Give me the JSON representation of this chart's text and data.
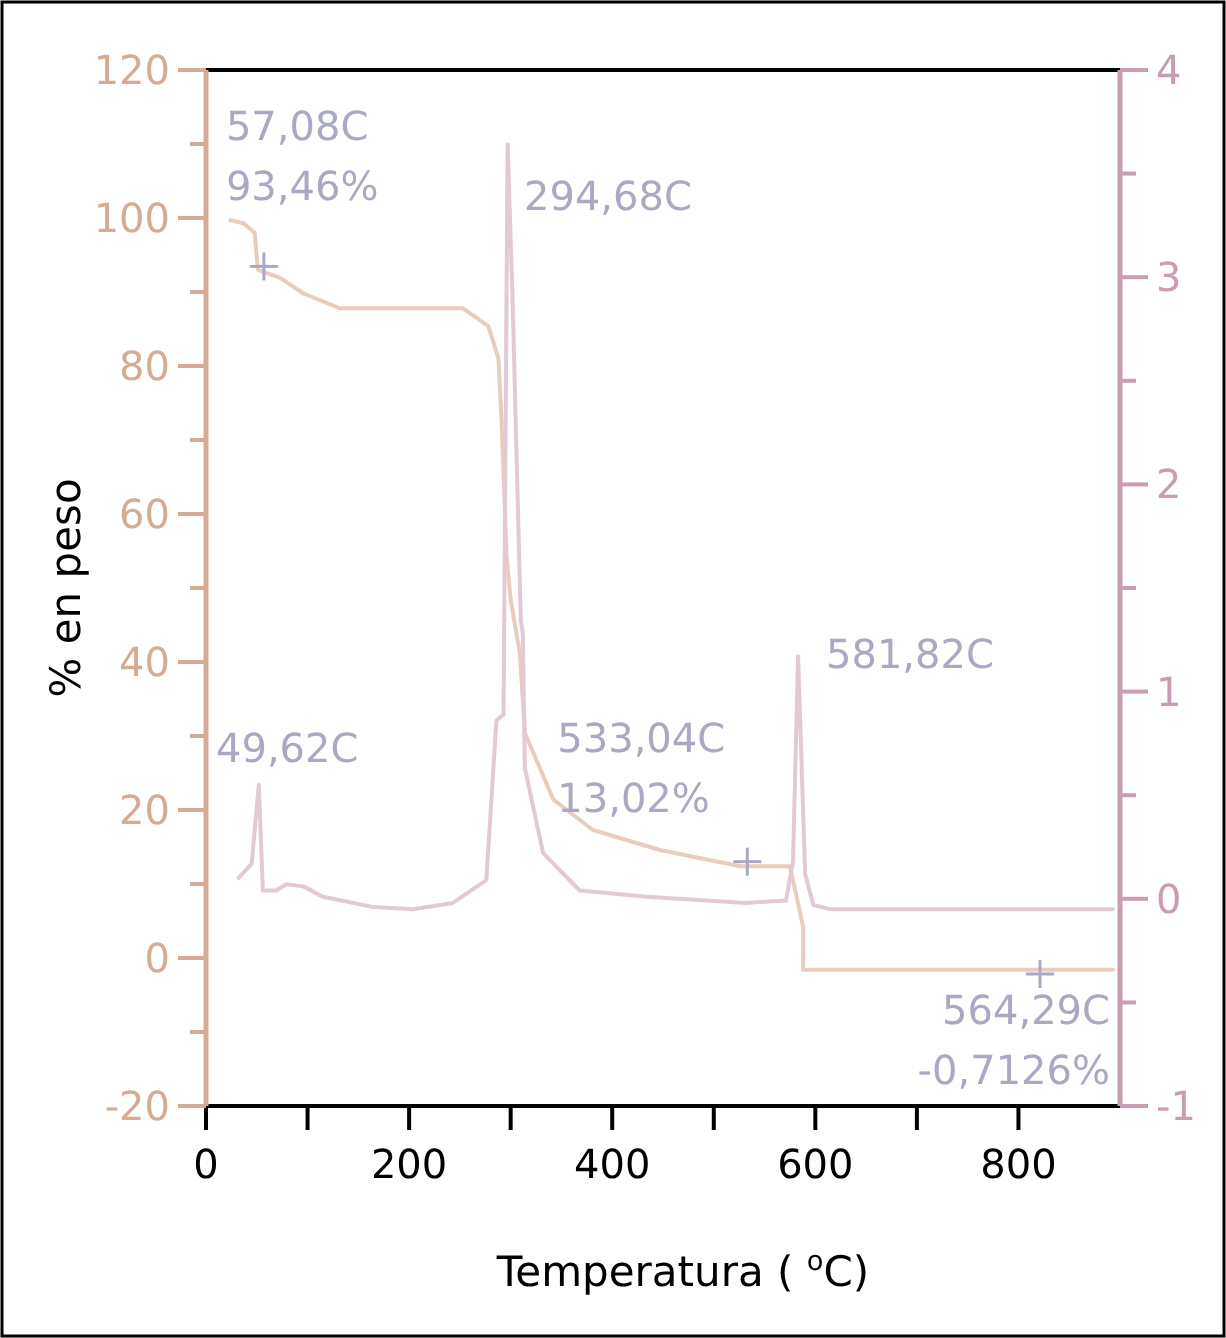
{
  "chart_data": {
    "type": "line",
    "xlabel": "Temperatura ( $^{o}$C)",
    "ylabel": "% en peso",
    "xlim": [
      0,
      900
    ],
    "xticks": [
      0,
      {
        "value": 100,
        "label": null
      },
      200,
      {
        "value": 300,
        "label": null
      },
      400,
      {
        "value": 500,
        "label": null
      },
      600,
      {
        "value": 700,
        "label": null
      },
      800
    ],
    "ylim": [
      -20,
      120
    ],
    "yticks": [
      -20,
      {
        "value": -10,
        "label": null
      },
      0,
      {
        "value": 10,
        "label": null
      },
      20,
      {
        "value": 30,
        "label": null
      },
      40,
      {
        "value": 50,
        "label": null
      },
      60,
      {
        "value": 70,
        "label": null
      },
      80,
      {
        "value": 90,
        "label": null
      },
      100,
      {
        "value": 110,
        "label": null
      },
      120
    ],
    "y2lim": [
      -1,
      4
    ],
    "y2ticks": [
      -1,
      {
        "value": -0.5,
        "label": null
      },
      0,
      {
        "value": 0.5,
        "label": null
      },
      1,
      {
        "value": 1.5,
        "label": null
      },
      2,
      {
        "value": 2.5,
        "label": null
      },
      3,
      {
        "value": 3.5,
        "label": null
      },
      4
    ],
    "series": [
      {
        "color": "#e8cdbe",
        "x": [
          24,
          37,
          48,
          51,
          73,
          96,
          132,
          253,
          278,
          288,
          291,
          296,
          300,
          309,
          314,
          342,
          381,
          447,
          526,
          565,
          575,
          588,
          588,
          893
        ],
        "values": [
          99.7,
          99.3,
          98,
          93,
          91.9,
          89.8,
          87.8,
          87.8,
          85.4,
          81,
          72.7,
          54.3,
          48.4,
          41.2,
          30.4,
          21.4,
          17.3,
          14.6,
          12.4,
          12.4,
          12.4,
          4.2,
          -1.6,
          -1.6
        ]
      },
      {
        "color": "#e2c9d6",
        "axis": "y2",
        "x": [
          32,
          45,
          52,
          56,
          69,
          79,
          96,
          115,
          165,
          204,
          243,
          276,
          286,
          293,
          297,
          302,
          310,
          312,
          314,
          332,
          368,
          434,
          532,
          565,
          571,
          578,
          583,
          590,
          598,
          614,
          893
        ],
        "values": [
          0.1,
          0.17,
          0.55,
          0.04,
          0.04,
          0.07,
          0.06,
          0.01,
          -0.04,
          -0.05,
          -0.02,
          0.09,
          0.86,
          0.89,
          3.64,
          2.87,
          1.34,
          1.28,
          0.63,
          0.22,
          0.04,
          0.01,
          -0.02,
          -0.01,
          -0.01,
          0.18,
          1.17,
          0.12,
          -0.03,
          -0.05,
          -0.05
        ]
      }
    ],
    "annotations": [
      {
        "text": "57,08C\n93,46%",
        "x": 57,
        "y": 93.46
      },
      "294,68C",
      "49,62C",
      {
        "text": "533,04C\n13,02%",
        "x": 533,
        "y": 13.02
      },
      "581,82C",
      "564,29C\n-0,7126%"
    ]
  }
}
